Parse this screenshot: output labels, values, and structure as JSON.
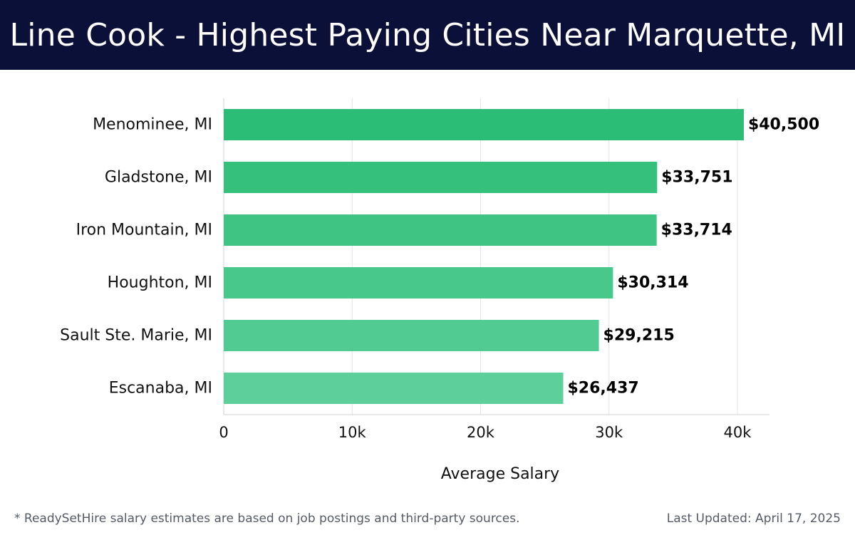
{
  "header": {
    "title": "Line Cook - Highest Paying Cities Near Marquette, MI"
  },
  "chart_data": {
    "type": "bar",
    "orientation": "horizontal",
    "title": "Line Cook - Highest Paying Cities Near Marquette, MI",
    "categories": [
      "Menominee, MI",
      "Gladstone, MI",
      "Iron Mountain, MI",
      "Houghton, MI",
      "Sault Ste. Marie, MI",
      "Escanaba, MI"
    ],
    "values": [
      40500,
      33751,
      33714,
      30314,
      29215,
      26437
    ],
    "value_labels": [
      "$40,500",
      "$33,751",
      "$33,714",
      "$30,314",
      "$29,215",
      "$26,437"
    ],
    "xlabel": "Average Salary",
    "ylabel": "",
    "xlim": [
      0,
      42500
    ],
    "xticks": [
      0,
      10000,
      20000,
      30000,
      40000
    ],
    "xtick_labels": [
      "0",
      "10k",
      "20k",
      "30k",
      "40k"
    ],
    "grid": true,
    "colors": {
      "bar_top": "#2bbd75",
      "bar_bottom": "#5ccf9a"
    }
  },
  "footer": {
    "note": "* ReadySetHire salary estimates are based on job postings and third-party sources.",
    "updated": "Last Updated: April 17, 2025"
  }
}
